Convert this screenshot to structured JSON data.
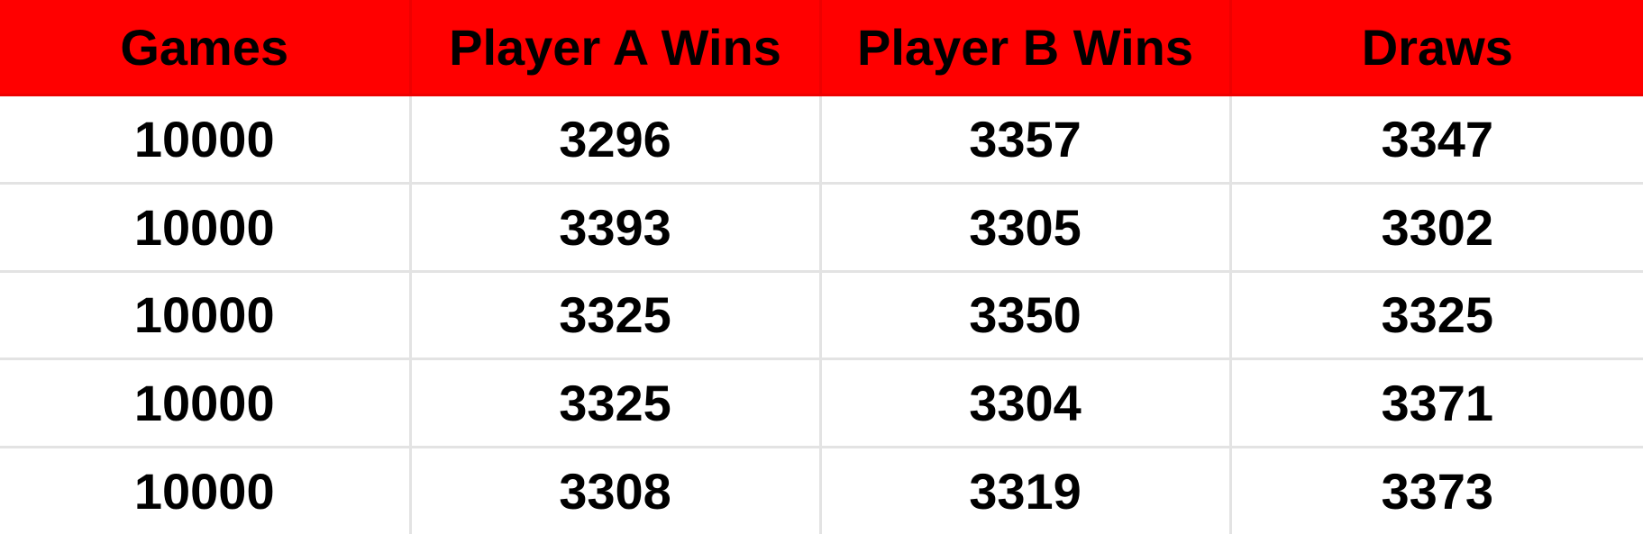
{
  "table": {
    "header_color": "#ff0000",
    "columns": [
      "Games",
      "Player A Wins",
      "Player B Wins",
      "Draws"
    ],
    "rows": [
      [
        "10000",
        "3296",
        "3357",
        "3347"
      ],
      [
        "10000",
        "3393",
        "3305",
        "3302"
      ],
      [
        "10000",
        "3325",
        "3350",
        "3325"
      ],
      [
        "10000",
        "3325",
        "3304",
        "3371"
      ],
      [
        "10000",
        "3308",
        "3319",
        "3373"
      ]
    ]
  }
}
